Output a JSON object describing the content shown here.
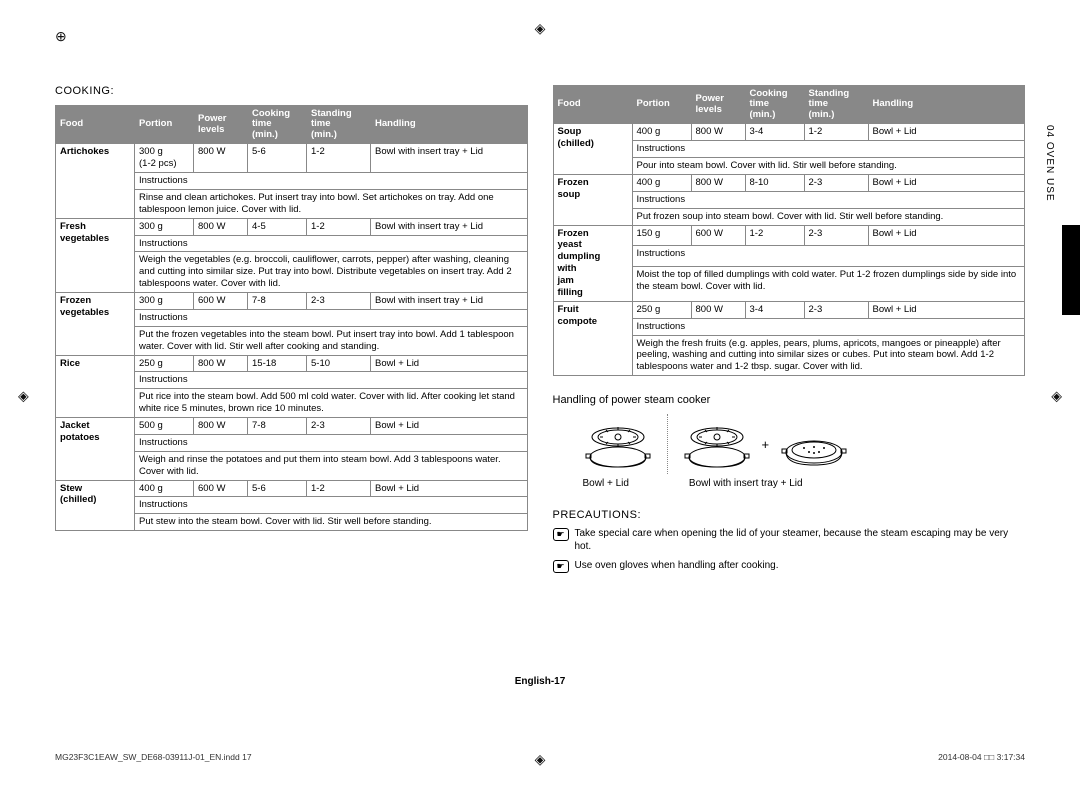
{
  "section_marker": "04  OVEN USE",
  "title_left": "COOKING:",
  "headers": [
    "Food",
    "Portion",
    "Power levels",
    "Cooking time (min.)",
    "Standing time (min.)",
    "Handling"
  ],
  "left_rows": [
    {
      "food": "Artichokes",
      "portion": "300 g (1-2 pcs)",
      "power": "800 W",
      "ct": "5-6",
      "st": "1-2",
      "hand": "Bowl with insert tray + Lid",
      "instr": "Rinse and clean artichokes. Put insert tray into bowl. Set artichokes on tray. Add one tablespoon lemon juice. Cover with lid."
    },
    {
      "food": "Fresh vegetables",
      "portion": "300 g",
      "power": "800 W",
      "ct": "4-5",
      "st": "1-2",
      "hand": "Bowl with insert tray + Lid",
      "instr": "Weigh the vegetables (e.g. broccoli, cauliflower, carrots, pepper) after washing, cleaning and cutting into similar size. Put tray into bowl. Distribute vegetables on insert tray. Add 2 tablespoons water. Cover with lid."
    },
    {
      "food": "Frozen vegetables",
      "portion": "300 g",
      "power": "600 W",
      "ct": "7-8",
      "st": "2-3",
      "hand": "Bowl with insert tray + Lid",
      "instr": "Put the frozen vegetables into the steam bowl. Put insert tray into bowl. Add 1 tablespoon water. Cover with lid. Stir well after cooking and standing."
    },
    {
      "food": "Rice",
      "portion": "250 g",
      "power": "800 W",
      "ct": "15-18",
      "st": "5-10",
      "hand": "Bowl + Lid",
      "instr": "Put rice into the steam bowl. Add 500 ml cold water. Cover with lid. After cooking let stand white rice 5 minutes, brown rice 10 minutes."
    },
    {
      "food": "Jacket potatoes",
      "portion": "500 g",
      "power": "800 W",
      "ct": "7-8",
      "st": "2-3",
      "hand": "Bowl + Lid",
      "instr": "Weigh and rinse the potatoes and put them into steam bowl. Add 3 tablespoons water. Cover with lid."
    },
    {
      "food": "Stew (chilled)",
      "portion": "400 g",
      "power": "600 W",
      "ct": "5-6",
      "st": "1-2",
      "hand": "Bowl + Lid",
      "instr": "Put stew into the steam bowl. Cover with lid. Stir well before standing."
    }
  ],
  "right_rows": [
    {
      "food": "Soup (chilled)",
      "portion": "400 g",
      "power": "800 W",
      "ct": "3-4",
      "st": "1-2",
      "hand": "Bowl + Lid",
      "instr": "Pour into steam bowl. Cover with lid. Stir well before standing."
    },
    {
      "food": "Frozen soup",
      "portion": "400 g",
      "power": "800 W",
      "ct": "8-10",
      "st": "2-3",
      "hand": "Bowl + Lid",
      "instr": "Put frozen soup into steam bowl. Cover with lid. Stir well before standing."
    },
    {
      "food": "Frozen yeast dumpling with jam filling",
      "portion": "150 g",
      "power": "600 W",
      "ct": "1-2",
      "st": "2-3",
      "hand": "Bowl + Lid",
      "instr": "Moist the top of filled dumplings with cold water. Put 1-2 frozen dumplings side by side into the steam bowl. Cover with lid."
    },
    {
      "food": "Fruit compote",
      "portion": "250 g",
      "power": "800 W",
      "ct": "3-4",
      "st": "2-3",
      "hand": "Bowl + Lid",
      "instr": "Weigh the fresh fruits (e.g. apples, pears, plums, apricots, mangoes or pineapple) after peeling, washing and cutting into similar sizes or cubes. Put into steam bowl. Add 1-2 tablespoons water and 1-2 tbsp. sugar. Cover with lid."
    }
  ],
  "handling_title": "Handling of power steam cooker",
  "caption1": "Bowl + Lid",
  "caption2": "Bowl with insert tray + Lid",
  "precautions_title": "PRECAUTIONS:",
  "prec1": "Take special care when opening the lid of your steamer, because the steam escaping may be very hot.",
  "prec2": "Use oven gloves when handling after cooking.",
  "page_label": "English-17",
  "footer_left": "MG23F3C1EAW_SW_DE68-03911J-01_EN.indd   17",
  "footer_right": "2014-08-04   □□ 3:17:34",
  "instructions_label": "Instructions",
  "plus_sign": "+"
}
